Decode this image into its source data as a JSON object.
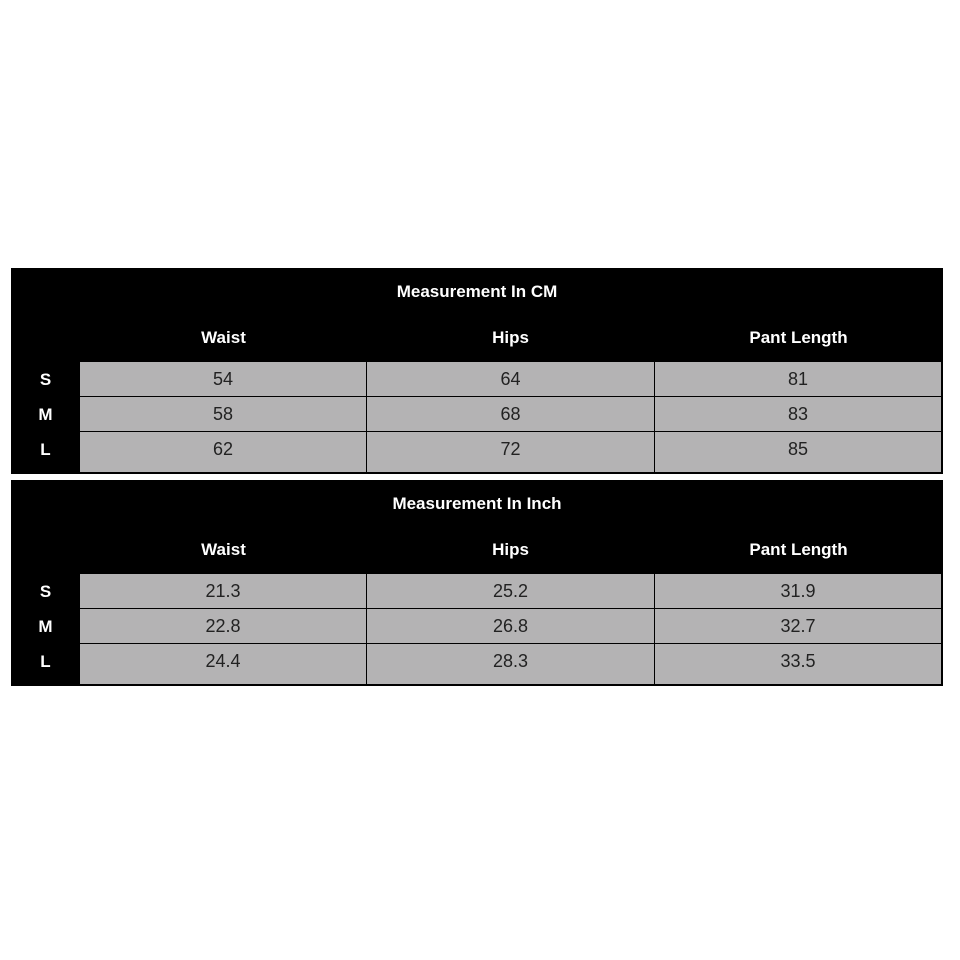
{
  "tables": [
    {
      "title": "Measurement In CM",
      "headers": [
        "Waist",
        "Hips",
        "Pant Length"
      ],
      "rows": [
        {
          "size": "S",
          "values": [
            "54",
            "64",
            "81"
          ]
        },
        {
          "size": "M",
          "values": [
            "58",
            "68",
            "83"
          ]
        },
        {
          "size": "L",
          "values": [
            "62",
            "72",
            "85"
          ]
        }
      ]
    },
    {
      "title": "Measurement In Inch",
      "headers": [
        "Waist",
        "Hips",
        "Pant Length"
      ],
      "rows": [
        {
          "size": "S",
          "values": [
            "21.3",
            "25.2",
            "31.9"
          ]
        },
        {
          "size": "M",
          "values": [
            "22.8",
            "26.8",
            "32.7"
          ]
        },
        {
          "size": "L",
          "values": [
            "24.4",
            "28.3",
            "33.5"
          ]
        }
      ]
    }
  ]
}
